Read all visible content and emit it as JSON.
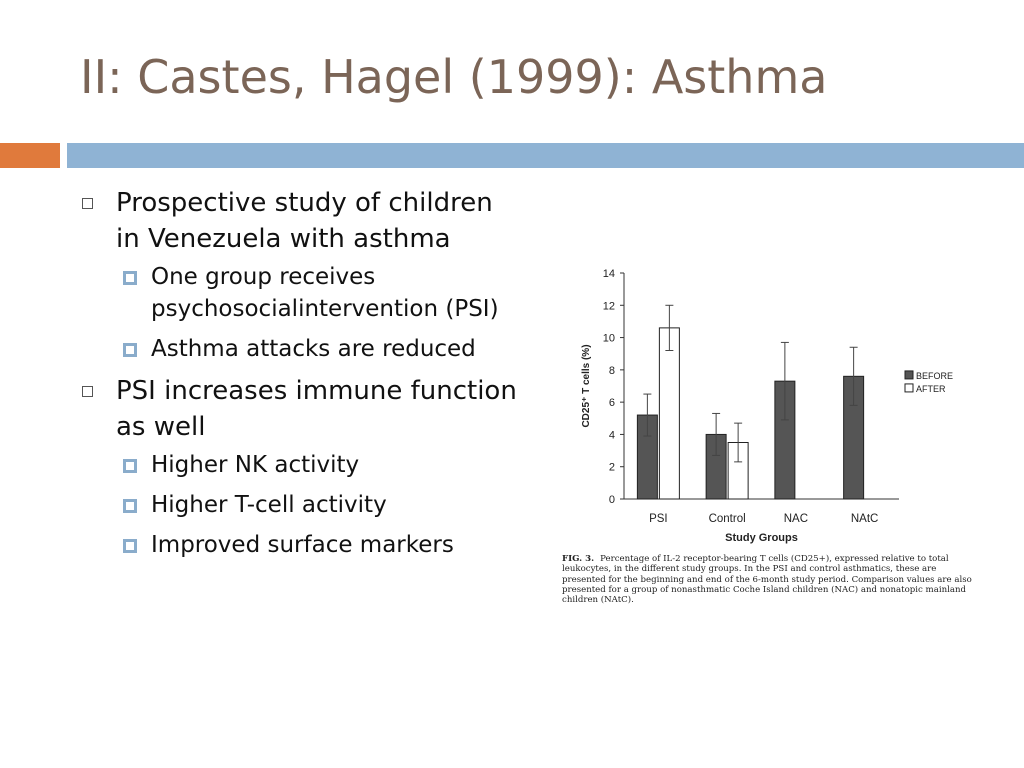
{
  "slide": {
    "title": "II: Castes, Hagel (1999): Asthma",
    "colors": {
      "orange": "#e07a3c",
      "blue": "#8fb3d4"
    }
  },
  "bullets": [
    {
      "text": "Prospective study of children in Venezuela with asthma",
      "sub": [
        "One group receives psychosocialintervention (PSI)",
        "Asthma attacks are reduced"
      ]
    },
    {
      "text": "PSI increases immune function as well",
      "sub": [
        "Higher NK activity",
        "Higher T-cell activity",
        "Improved surface markers"
      ]
    }
  ],
  "chart_data": {
    "type": "bar",
    "categories": [
      "PSI",
      "Control",
      "NAC",
      "NAtC"
    ],
    "series": [
      {
        "name": "BEFORE",
        "values": [
          5.2,
          4.0,
          7.3,
          7.6
        ],
        "errors": [
          1.3,
          1.3,
          2.4,
          1.8
        ],
        "color": "#555555"
      },
      {
        "name": "AFTER",
        "values": [
          10.6,
          3.5,
          null,
          null
        ],
        "errors": [
          1.4,
          1.2,
          null,
          null
        ],
        "color": "#ffffff"
      }
    ],
    "xlabel": "Study Groups",
    "ylabel": "CD25⁺ T cells (%)",
    "ylim": [
      0,
      14
    ],
    "yticks": [
      "14",
      "12",
      "10",
      "8",
      "6",
      "4",
      "2",
      "0"
    ],
    "legend_position": "right",
    "grid": false,
    "caption_label": "FIG. 3.",
    "caption_text": "Percentage of IL-2 receptor-bearing T cells (CD25+), expressed relative to total leukocytes, in the different study groups. In the PSI and control asthmatics, these are presented for the beginning and end of the 6-month study period. Comparison values are also presented for a group of nonasthmatic Coche Island children (NAC) and nonatopic mainland children (NAtC)."
  }
}
